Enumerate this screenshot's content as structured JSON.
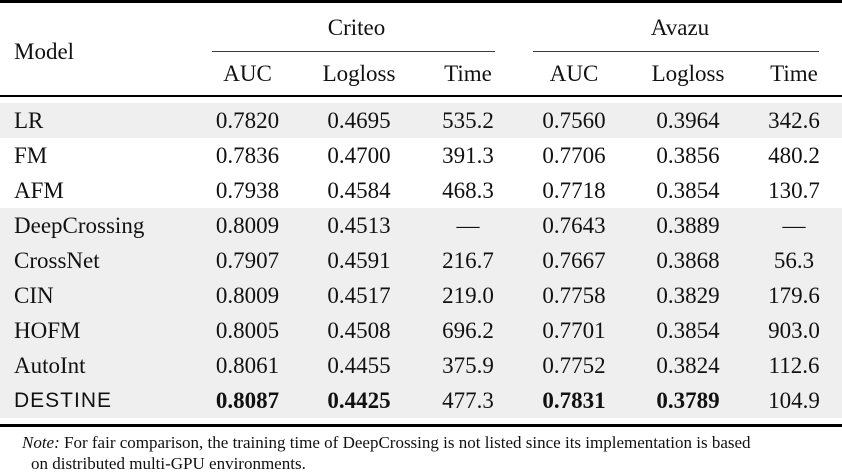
{
  "table": {
    "header": {
      "model_label": "Model",
      "groups": [
        {
          "label": "Criteo",
          "subcols": [
            "AUC",
            "Logloss",
            "Time"
          ]
        },
        {
          "label": "Avazu",
          "subcols": [
            "AUC",
            "Logloss",
            "Time"
          ]
        }
      ]
    },
    "rows": [
      {
        "model": "LR",
        "shaded": true,
        "cells": [
          "0.7820",
          "0.4695",
          "535.2",
          "0.7560",
          "0.3964",
          "342.6"
        ]
      },
      {
        "model": "FM",
        "shaded": false,
        "cells": [
          "0.7836",
          "0.4700",
          "391.3",
          "0.7706",
          "0.3856",
          "480.2"
        ]
      },
      {
        "model": "AFM",
        "shaded": false,
        "cells": [
          "0.7938",
          "0.4584",
          "468.3",
          "0.7718",
          "0.3854",
          "130.7"
        ]
      },
      {
        "model": "DeepCrossing",
        "shaded": true,
        "cells": [
          "0.8009",
          "0.4513",
          "—",
          "0.7643",
          "0.3889",
          "—"
        ]
      },
      {
        "model": "CrossNet",
        "shaded": true,
        "cells": [
          "0.7907",
          "0.4591",
          "216.7",
          "0.7667",
          "0.3868",
          "56.3"
        ]
      },
      {
        "model": "CIN",
        "shaded": true,
        "cells": [
          "0.8009",
          "0.4517",
          "219.0",
          "0.7758",
          "0.3829",
          "179.6"
        ]
      },
      {
        "model": "HOFM",
        "shaded": true,
        "cells": [
          "0.8005",
          "0.4508",
          "696.2",
          "0.7701",
          "0.3854",
          "903.0"
        ]
      },
      {
        "model": "AutoInt",
        "shaded": true,
        "cells": [
          "0.8061",
          "0.4455",
          "375.9",
          "0.7752",
          "0.3824",
          "112.6"
        ]
      },
      {
        "model": "DESTINE",
        "shaded": true,
        "model_sans": true,
        "bold_cells": [
          0,
          1,
          3,
          4
        ],
        "cells": [
          "0.8087",
          "0.4425",
          "477.3",
          "0.7831",
          "0.3789",
          "104.9"
        ]
      }
    ]
  },
  "note": {
    "label": "Note:",
    "line1": "For fair comparison, the training time of DeepCrossing is not listed since its implementation is based",
    "line2": "on distributed multi-GPU environments."
  },
  "colors": {
    "row_shade": "#efefef",
    "rule": "#000000",
    "text": "#111111"
  }
}
